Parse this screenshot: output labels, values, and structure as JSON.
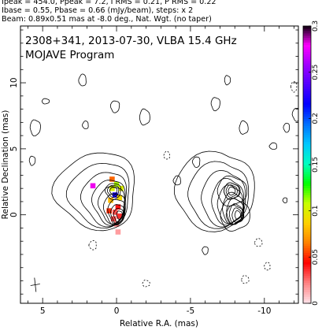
{
  "header": {
    "line1": "Ipeak = 454.0, Ppeak = 7.2, I RMS = 0.21, P RMS = 0.22",
    "line2": "Ibase = 0.55, Pbase = 0.66 (mJy/beam), steps: x 2",
    "line3": "Beam: 0.89x0.51 mas at -8.0 deg., Nat. Wgt. (no taper)"
  },
  "chart_data": {
    "type": "contour",
    "title": "2308+341, 2013-07-30, VLBA 15.4 GHz",
    "subtitle": "MOJAVE Program",
    "xlabel": "Relative R.A. (mas)",
    "ylabel": "Relative Declination (mas)",
    "xlim": [
      6.5,
      -12.3
    ],
    "ylim": [
      -6.7,
      14.3
    ],
    "x_ticks": [
      5,
      0,
      -5,
      -10
    ],
    "y_ticks": [
      0,
      5,
      10
    ],
    "panel_offset_mas": 8.0,
    "colorbar": {
      "min": 0,
      "max": 0.3,
      "ticks": [
        "0",
        "0.05",
        "0.1",
        "0.15",
        "0.2",
        "0.25",
        "0.3"
      ],
      "colors": [
        "#ffe0e6",
        "#ff8080",
        "#ff0000",
        "#ff8000",
        "#ffd000",
        "#c8ff00",
        "#00ff00",
        "#00ffc0",
        "#00c8ff",
        "#0070ff",
        "#0000ff",
        "#5000ff",
        "#a000ff",
        "#ff00ff",
        "#000000"
      ]
    },
    "contour_levels_mJy": [
      0.55,
      1.1,
      2.2,
      4.4,
      8.8,
      17.6,
      35.2,
      70.4,
      140.8,
      281.6
    ],
    "total_intensity": {
      "core": {
        "x": -0.1,
        "y": 0.0
      },
      "jet_component": {
        "x": 0.2,
        "y": 1.8
      }
    },
    "pol_pixels": [
      {
        "x": 0.0,
        "y": 2.3,
        "frac": 0.11
      },
      {
        "x": 0.3,
        "y": 2.0,
        "frac": 0.1
      },
      {
        "x": -0.3,
        "y": 2.0,
        "frac": 0.1
      },
      {
        "x": 0.1,
        "y": 1.5,
        "frac": 0.22
      },
      {
        "x": -0.2,
        "y": 1.3,
        "frac": 0.09
      },
      {
        "x": 0.4,
        "y": 1.1,
        "frac": 0.08
      },
      {
        "x": -0.1,
        "y": 0.6,
        "frac": 0.04
      },
      {
        "x": 0.1,
        "y": 0.2,
        "frac": 0.03
      },
      {
        "x": -0.2,
        "y": -0.1,
        "frac": 0.035
      },
      {
        "x": 0.2,
        "y": -0.3,
        "frac": 0.03
      },
      {
        "x": 0.0,
        "y": -0.7,
        "frac": 0.02
      },
      {
        "x": -0.1,
        "y": -1.3,
        "frac": 0.015
      },
      {
        "x": 0.5,
        "y": 0.3,
        "frac": 0.05
      },
      {
        "x": 0.3,
        "y": 2.7,
        "frac": 0.06
      },
      {
        "x": 1.6,
        "y": 2.2,
        "frac": 0.28
      }
    ]
  }
}
